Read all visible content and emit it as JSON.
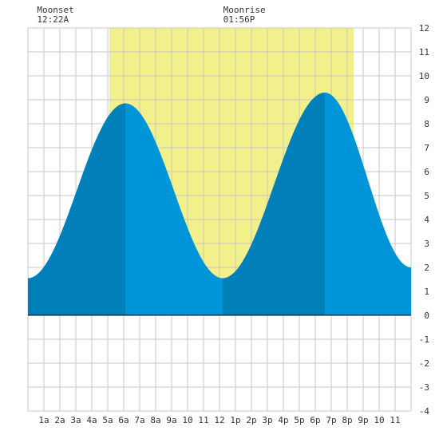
{
  "chart_data": {
    "type": "area",
    "annotations": [
      {
        "label": "Moonset",
        "time": "12:22A",
        "hour": 0.37
      },
      {
        "label": "Moonrise",
        "time": "01:56P",
        "hour": 13.93
      }
    ],
    "x_tick_labels": [
      "1a",
      "2a",
      "3a",
      "4a",
      "5a",
      "6a",
      "7a",
      "8a",
      "9a",
      "10",
      "11",
      "12",
      "1p",
      "2p",
      "3p",
      "4p",
      "5p",
      "6p",
      "7p",
      "8p",
      "9p",
      "10",
      "11"
    ],
    "xlim": [
      0,
      24
    ],
    "ylim": [
      -4,
      12
    ],
    "y_ticks": [
      12,
      11,
      10,
      9,
      8,
      7,
      6,
      5,
      4,
      3,
      2,
      1,
      0,
      -1,
      -2,
      -3,
      -4
    ],
    "grid": true,
    "daylight": {
      "start_hour": 5.1,
      "end_hour": 20.4
    },
    "tide_extremes": [
      {
        "type": "low",
        "hour": 0.0,
        "height": 1.55
      },
      {
        "type": "high",
        "hour": 6.1,
        "height": 8.85
      },
      {
        "type": "low",
        "hour": 12.2,
        "height": 1.55
      },
      {
        "type": "high",
        "hour": 18.6,
        "height": 9.3
      },
      {
        "type": "low",
        "hour": 24.0,
        "height": 2.0
      }
    ],
    "colors": {
      "daylight": "#f2f08a",
      "tide_light": "#0095d9",
      "tide_dark": "#007fb8",
      "grid": "#c8c8c8",
      "text": "#333333"
    }
  }
}
